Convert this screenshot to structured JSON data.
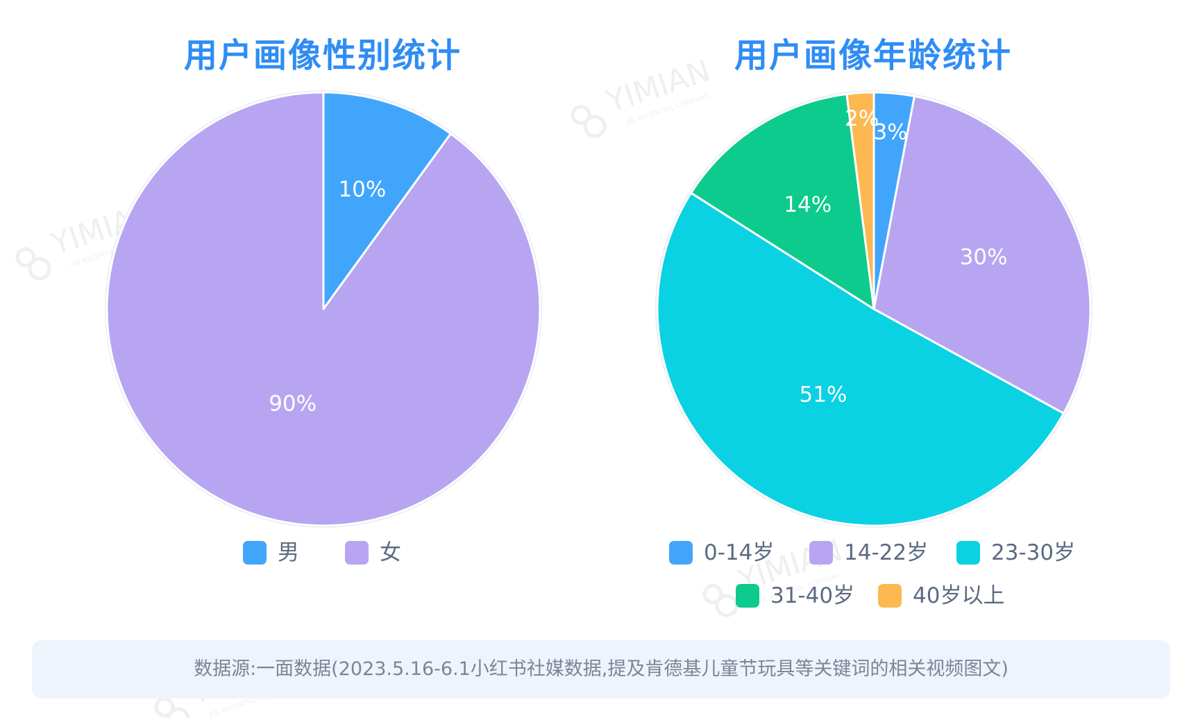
{
  "chart_data": [
    {
      "type": "pie",
      "title": "用户画像性别统计",
      "slices": [
        {
          "label": "男",
          "value": 10,
          "value_label": "10%",
          "color": "#42a5fc"
        },
        {
          "label": "女",
          "value": 90,
          "value_label": "90%",
          "color": "#b7a5f2"
        }
      ],
      "legend_placement": "bottom"
    },
    {
      "type": "pie",
      "title": "用户画像年龄统计",
      "slices": [
        {
          "label": "0-14岁",
          "value": 3,
          "value_label": "3%",
          "color": "#42a5fc"
        },
        {
          "label": "14-22岁",
          "value": 30,
          "value_label": "30%",
          "color": "#b7a5f2"
        },
        {
          "label": "23-30岁",
          "value": 51,
          "value_label": "51%",
          "color": "#0ad2e2"
        },
        {
          "label": "31-40岁",
          "value": 14,
          "value_label": "14%",
          "color": "#0ccb8d"
        },
        {
          "label": "40岁以上",
          "value": 2,
          "value_label": "2%",
          "color": "#fdb851"
        }
      ],
      "legend_placement": "bottom"
    }
  ],
  "footer": {
    "source_text": "数据源:一面数据(2023.5.16-6.1小红书社媒数据,提及肯德基儿童节玩具等关键词的相关视频图文)"
  },
  "watermark": {
    "brand": "YIMIAN",
    "tagline": "AN ASCENTIAL COMPANY"
  },
  "colors": {
    "title": "#2f8df4",
    "slice_label": "#ffffff",
    "legend_text": "#5b6a82",
    "footer_bg": "#eef4fc",
    "footer_text": "#7c8596"
  }
}
